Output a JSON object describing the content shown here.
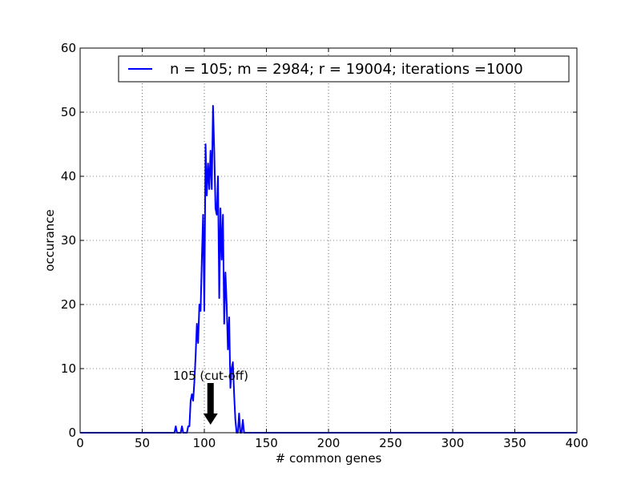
{
  "chart_data": {
    "type": "line",
    "title": "",
    "xlabel": "# common genes",
    "ylabel": "occurance",
    "xlim": [
      0,
      400
    ],
    "ylim": [
      0,
      60
    ],
    "xticks": [
      0,
      50,
      100,
      150,
      200,
      250,
      300,
      350,
      400
    ],
    "yticks": [
      0,
      10,
      20,
      30,
      40,
      50,
      60
    ],
    "grid": true,
    "legend_position": "top-right",
    "colors": {
      "series": "#0000ff",
      "axes": "#000000",
      "grid": "#000000",
      "annotation": "#000000"
    },
    "series": [
      {
        "name": "n = 105; m = 2984; r = 19004; iterations =1000",
        "x": [
          0,
          76,
          77,
          78,
          81,
          82,
          83,
          86,
          87,
          88,
          89,
          90,
          91,
          92,
          93,
          94,
          95,
          96,
          97,
          98,
          99,
          100,
          101,
          102,
          103,
          104,
          105,
          106,
          107,
          108,
          109,
          110,
          111,
          112,
          113,
          114,
          115,
          116,
          117,
          118,
          119,
          120,
          121,
          122,
          123,
          124,
          125,
          126,
          127,
          128,
          129,
          130,
          131,
          132,
          133,
          134,
          135,
          136,
          137,
          138,
          400
        ],
        "y": [
          0,
          0,
          1,
          0,
          0,
          1,
          0,
          0,
          1,
          1,
          5,
          6,
          5,
          8,
          12,
          17,
          14,
          20,
          19,
          27,
          34,
          19,
          45,
          37,
          42,
          38,
          44,
          38,
          51,
          44,
          35,
          34,
          40,
          21,
          35,
          27,
          34,
          17,
          25,
          20,
          13,
          18,
          7,
          10,
          11,
          6,
          2,
          0,
          0,
          3,
          0,
          0,
          2,
          0,
          0,
          0,
          0,
          0,
          0,
          0,
          0
        ]
      }
    ],
    "annotations": [
      {
        "text": "105 (cut-off)",
        "x": 105,
        "y": 8,
        "arrow": "down"
      }
    ]
  }
}
